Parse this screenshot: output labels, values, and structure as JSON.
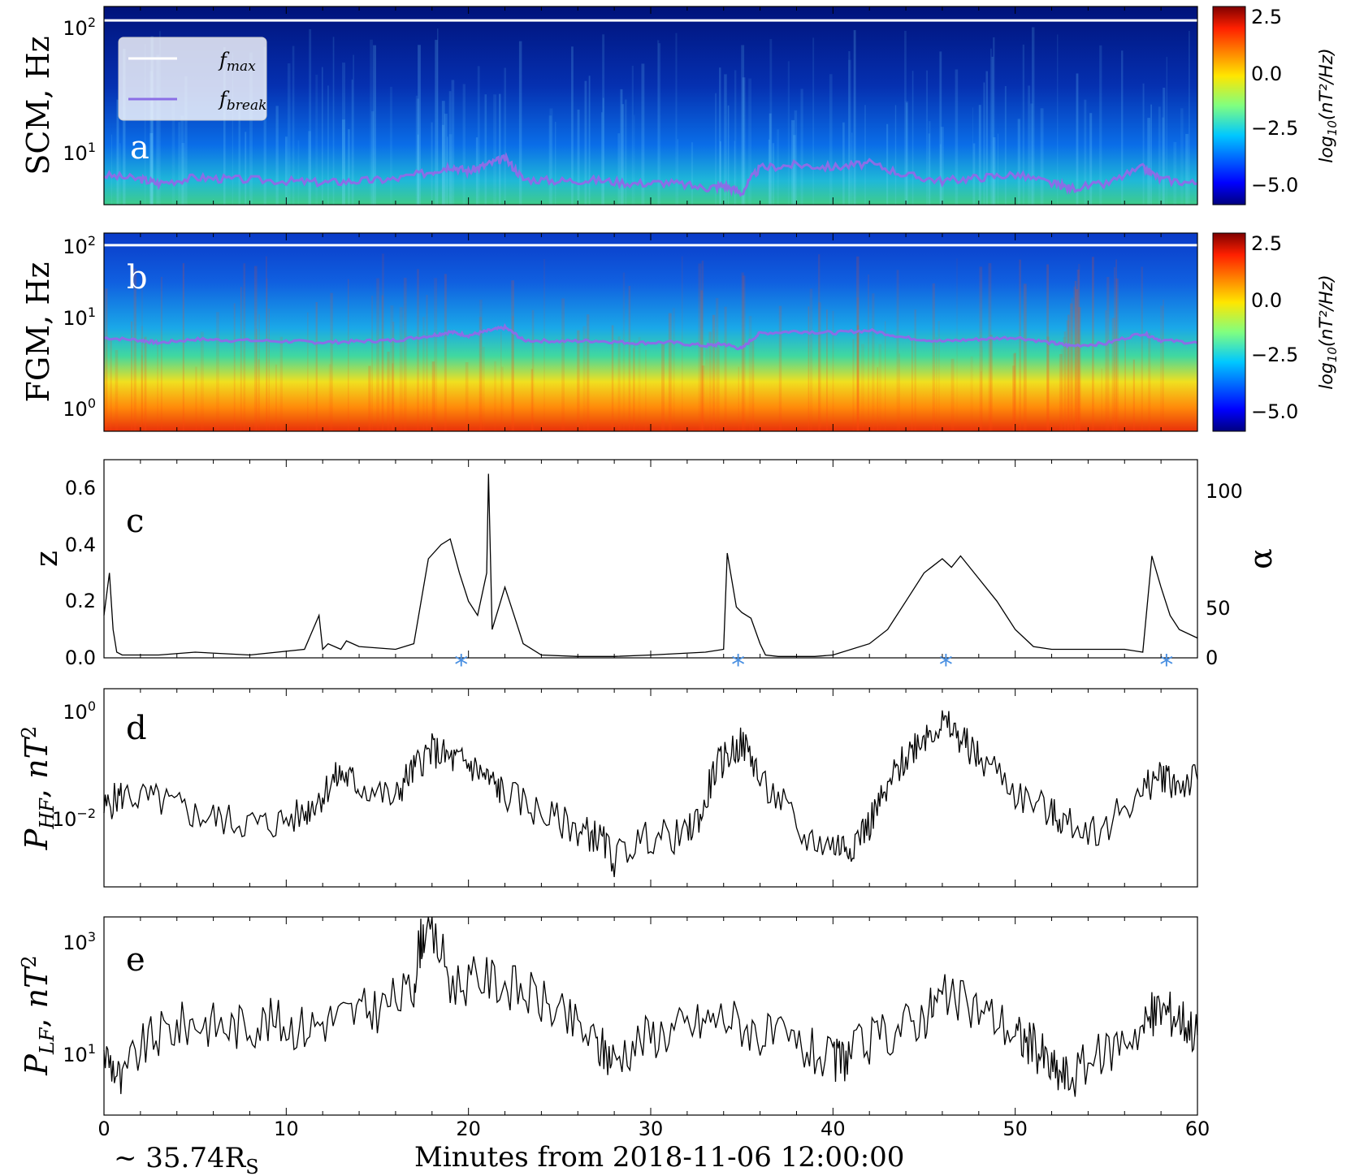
{
  "chart_data": [
    {
      "panel": "a",
      "type": "heatmap",
      "ylabel": "SCM, Hz",
      "yscale": "log",
      "ylim": [
        4.5,
        140
      ],
      "yticks": [
        "10^1",
        "10^2"
      ],
      "xlim": [
        0,
        60
      ],
      "colorbar": {
        "label": "log10(nT^2/Hz)",
        "range": [
          -6,
          3
        ],
        "ticks": [
          "2.5",
          "0.0",
          "−2.5",
          "−5.0"
        ]
      },
      "legend": {
        "position": "upper-left",
        "entries": [
          {
            "name": "f_max",
            "color": "#ffffff"
          },
          {
            "name": "f_break",
            "color": "#8a6ee6"
          }
        ]
      },
      "f_max_hz": 110,
      "f_break_hz": {
        "x": [
          0,
          2,
          3,
          5,
          7,
          10,
          12,
          14,
          16,
          18,
          19,
          20,
          21,
          22,
          23,
          25,
          27,
          29,
          31,
          33,
          34,
          35,
          36,
          38,
          40,
          42,
          44,
          46,
          48,
          50,
          52,
          53,
          55,
          57,
          58,
          60
        ],
        "y": [
          7.5,
          7.0,
          6.5,
          7.2,
          7.0,
          6.8,
          6.6,
          6.8,
          7.0,
          8.0,
          8.8,
          8.0,
          9.0,
          10.0,
          7.0,
          6.8,
          6.9,
          6.5,
          6.6,
          6.0,
          6.3,
          5.5,
          8.5,
          9.0,
          8.6,
          9.2,
          7.5,
          6.8,
          7.2,
          7.6,
          6.5,
          6.0,
          6.4,
          8.5,
          7.0,
          6.5
        ]
      }
    },
    {
      "panel": "b",
      "type": "heatmap",
      "ylabel": "FGM, Hz",
      "yscale": "log",
      "ylim": [
        0.55,
        140
      ],
      "yticks": [
        "10^0",
        "10^1",
        "10^2"
      ],
      "xlim": [
        0,
        60
      ],
      "colorbar": {
        "label": "log10(nT^2/Hz)",
        "range": [
          -6,
          3
        ],
        "ticks": [
          "2.5",
          "0.0",
          "−2.5",
          "−5.0"
        ]
      },
      "f_max_hz": 100,
      "f_break_hz": {
        "x": [
          0,
          2,
          3,
          5,
          7,
          10,
          12,
          14,
          16,
          18,
          19,
          20,
          21,
          22,
          23,
          25,
          27,
          29,
          31,
          33,
          34,
          35,
          36,
          38,
          40,
          42,
          44,
          46,
          48,
          50,
          52,
          53,
          55,
          57,
          58,
          60
        ],
        "y": [
          7.5,
          7.0,
          6.5,
          7.2,
          7.0,
          6.8,
          6.6,
          6.8,
          7.0,
          8.0,
          8.8,
          8.0,
          9.0,
          10.0,
          7.0,
          6.8,
          6.9,
          6.5,
          6.6,
          6.0,
          6.3,
          5.5,
          8.5,
          9.0,
          8.6,
          9.2,
          7.5,
          6.8,
          7.2,
          7.6,
          6.5,
          6.0,
          6.4,
          8.5,
          7.0,
          6.5
        ]
      }
    },
    {
      "panel": "c",
      "type": "line",
      "ylabel": "z",
      "ylabel_right": "α",
      "ylim": [
        0,
        0.7
      ],
      "yticks": [
        "0.0",
        "0.2",
        "0.4",
        "0.6"
      ],
      "yticks_right": [
        "0",
        "50",
        "100"
      ],
      "xlim": [
        0,
        60
      ],
      "x": [
        0,
        0.3,
        0.5,
        0.7,
        1,
        3,
        5,
        8,
        11,
        11.8,
        12,
        12.3,
        13,
        13.3,
        14,
        16,
        17,
        17.8,
        18.5,
        19,
        19.5,
        20,
        20.5,
        21,
        21.1,
        21.3,
        22,
        22.5,
        23,
        24,
        26,
        28,
        30,
        33,
        34,
        34.2,
        34.7,
        35,
        35.5,
        36,
        36.3,
        37,
        39,
        40,
        42,
        43,
        44,
        45,
        46,
        46.5,
        47,
        48,
        49,
        50,
        51,
        52,
        54,
        56,
        57,
        57.5,
        58,
        58.5,
        59,
        60
      ],
      "y": [
        0.15,
        0.3,
        0.1,
        0.02,
        0.01,
        0.01,
        0.02,
        0.01,
        0.03,
        0.15,
        0.03,
        0.05,
        0.03,
        0.06,
        0.04,
        0.03,
        0.05,
        0.35,
        0.4,
        0.42,
        0.3,
        0.2,
        0.15,
        0.3,
        0.65,
        0.1,
        0.25,
        0.15,
        0.05,
        0.01,
        0.005,
        0.005,
        0.01,
        0.02,
        0.03,
        0.37,
        0.18,
        0.16,
        0.14,
        0.05,
        0.01,
        0.005,
        0.005,
        0.01,
        0.05,
        0.1,
        0.2,
        0.3,
        0.35,
        0.32,
        0.36,
        0.28,
        0.2,
        0.1,
        0.04,
        0.03,
        0.03,
        0.03,
        0.02,
        0.36,
        0.25,
        0.15,
        0.1,
        0.07
      ],
      "markers": {
        "symbol": "*",
        "color": "#4a90e2",
        "x": [
          19.6,
          34.8,
          46.2,
          58.3
        ]
      }
    },
    {
      "panel": "d",
      "type": "line",
      "ylabel": "P_HF, nT^2",
      "yscale": "log",
      "ylim": [
        0.0003,
        2.5
      ],
      "yticks": [
        "10^-2",
        "10^0"
      ],
      "xlim": [
        0,
        60
      ],
      "x": [
        0,
        1,
        3,
        5,
        7,
        9,
        11,
        12,
        13,
        14,
        16,
        17,
        18,
        19,
        20,
        21,
        22,
        24,
        26,
        27,
        28,
        30,
        32,
        33,
        34,
        35,
        36,
        38,
        40,
        41,
        42,
        43,
        44,
        45,
        46,
        47,
        48,
        50,
        52,
        53,
        55,
        57,
        58,
        59,
        60
      ],
      "y": [
        0.01,
        0.02,
        0.015,
        0.008,
        0.006,
        0.005,
        0.008,
        0.02,
        0.05,
        0.03,
        0.015,
        0.06,
        0.15,
        0.1,
        0.08,
        0.04,
        0.02,
        0.008,
        0.004,
        0.003,
        0.001,
        0.003,
        0.003,
        0.01,
        0.1,
        0.2,
        0.03,
        0.003,
        0.002,
        0.002,
        0.005,
        0.02,
        0.1,
        0.3,
        0.5,
        0.25,
        0.1,
        0.02,
        0.008,
        0.005,
        0.004,
        0.02,
        0.05,
        0.03,
        0.04
      ]
    },
    {
      "panel": "e",
      "type": "line",
      "ylabel": "P_LF, nT^2",
      "yscale": "log",
      "ylim": [
        1.5,
        2500
      ],
      "yticks": [
        "10^1",
        "10^3"
      ],
      "xlim": [
        0,
        60
      ],
      "xlabel": "Minutes from 2018-11-06 12:00:00",
      "xticks": [
        "0",
        "10",
        "20",
        "30",
        "40",
        "50",
        "60"
      ],
      "x": [
        0,
        1,
        3,
        5,
        7,
        9,
        11,
        13,
        15,
        17,
        17.6,
        19,
        21,
        23,
        25,
        27,
        28,
        30,
        32,
        34,
        36,
        38,
        40,
        41,
        43,
        45,
        46,
        48,
        50,
        51,
        52,
        53,
        55,
        57,
        58,
        59,
        60
      ],
      "y": [
        15,
        4,
        30,
        50,
        40,
        50,
        40,
        60,
        80,
        150,
        1500,
        200,
        250,
        150,
        60,
        20,
        12,
        30,
        40,
        60,
        30,
        20,
        10,
        15,
        30,
        60,
        120,
        80,
        30,
        20,
        8,
        6,
        15,
        40,
        80,
        60,
        30
      ]
    }
  ],
  "panel_labels": [
    "a",
    "b",
    "c",
    "d",
    "e"
  ],
  "axis_texts": {
    "ylabel_a": "SCM, Hz",
    "ylabel_b": "FGM, Hz",
    "ylabel_c": "z",
    "ylabel_c_right": "α",
    "xlabel": "Minutes from 2018-11-06 12:00:00",
    "distance_label": "~ 35.74R",
    "distance_sub": "S"
  }
}
